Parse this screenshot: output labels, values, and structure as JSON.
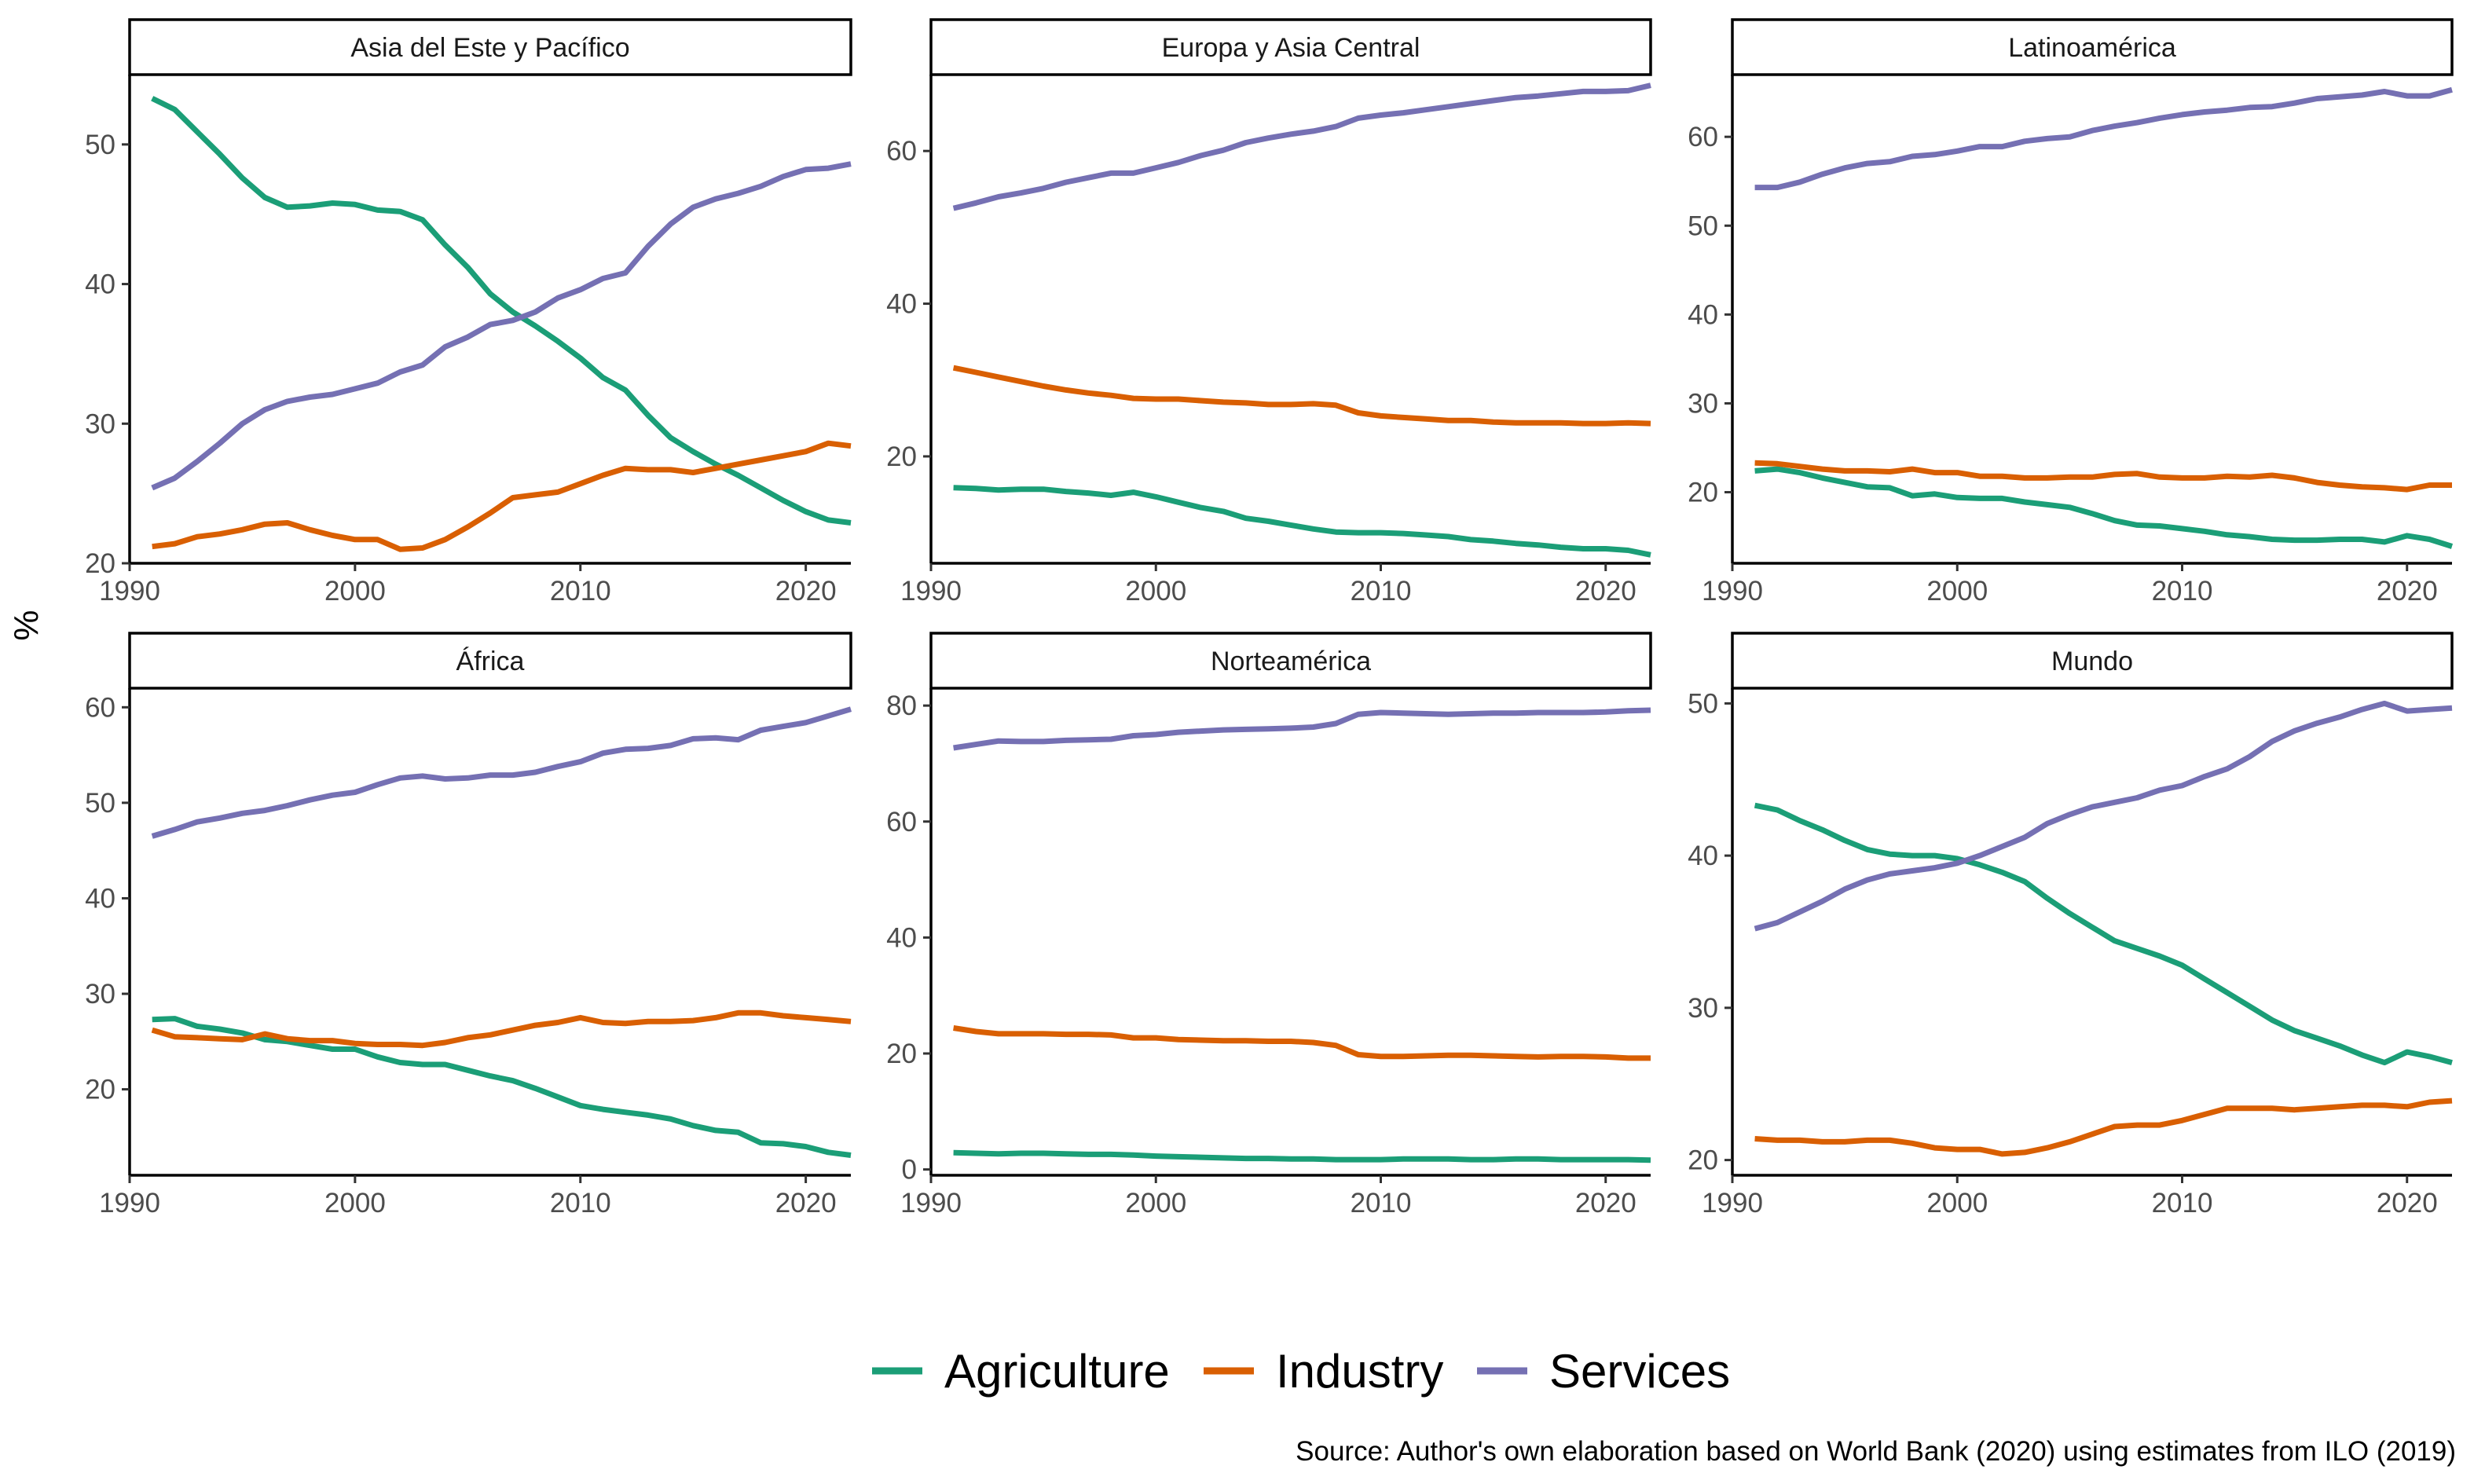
{
  "figure": {
    "ylabel": "%",
    "caption": "Source: Author's own elaboration based on World Bank (2020) using estimates from ILO (2019)"
  },
  "legend": {
    "placement": "bottom",
    "items": [
      {
        "name": "Agriculture",
        "color": "#1B9E77"
      },
      {
        "name": "Industry",
        "color": "#D95F02"
      },
      {
        "name": "Services",
        "color": "#7570B3"
      }
    ]
  },
  "chart_data": [
    {
      "type": "line",
      "title": "Asia del Este y Pacífico",
      "xlim": [
        1990,
        2022
      ],
      "ylim": [
        20,
        55
      ],
      "xticks": [
        1990,
        2000,
        2010,
        2020
      ],
      "yticks": [
        20,
        30,
        40,
        50
      ],
      "x": [
        1991,
        1992,
        1993,
        1994,
        1995,
        1996,
        1997,
        1998,
        1999,
        2000,
        2001,
        2002,
        2003,
        2004,
        2005,
        2006,
        2007,
        2008,
        2009,
        2010,
        2011,
        2012,
        2013,
        2014,
        2015,
        2016,
        2017,
        2018,
        2019,
        2020,
        2021,
        2022
      ],
      "series": [
        {
          "name": "Agriculture",
          "values": [
            53.3,
            52.5,
            50.9,
            49.3,
            47.6,
            46.2,
            45.5,
            45.6,
            45.8,
            45.7,
            45.3,
            45.2,
            44.6,
            42.8,
            41.2,
            39.3,
            38.0,
            37.0,
            35.9,
            34.7,
            33.3,
            32.4,
            30.6,
            29.0,
            28.0,
            27.1,
            26.3,
            25.4,
            24.5,
            23.7,
            23.1,
            22.9
          ]
        },
        {
          "name": "Industry",
          "values": [
            21.2,
            21.4,
            21.9,
            22.1,
            22.4,
            22.8,
            22.9,
            22.4,
            22.0,
            21.7,
            21.7,
            21.0,
            21.1,
            21.7,
            22.6,
            23.6,
            24.7,
            24.9,
            25.1,
            25.7,
            26.3,
            26.8,
            26.7,
            26.7,
            26.5,
            26.8,
            27.1,
            27.4,
            27.7,
            28.0,
            28.6,
            28.4
          ]
        },
        {
          "name": "Services",
          "values": [
            25.4,
            26.1,
            27.3,
            28.6,
            30.0,
            31.0,
            31.6,
            31.9,
            32.1,
            32.5,
            32.9,
            33.7,
            34.2,
            35.5,
            36.2,
            37.1,
            37.4,
            38.0,
            39.0,
            39.6,
            40.4,
            40.8,
            42.7,
            44.3,
            45.5,
            46.1,
            46.5,
            47.0,
            47.7,
            48.2,
            48.3,
            48.6
          ]
        }
      ]
    },
    {
      "type": "line",
      "title": "Europa y Asia Central",
      "xlim": [
        1990,
        2022
      ],
      "ylim": [
        6,
        70
      ],
      "xticks": [
        1990,
        2000,
        2010,
        2020
      ],
      "yticks": [
        20,
        40,
        60
      ],
      "x": [
        1991,
        1992,
        1993,
        1994,
        1995,
        1996,
        1997,
        1998,
        1999,
        2000,
        2001,
        2002,
        2003,
        2004,
        2005,
        2006,
        2007,
        2008,
        2009,
        2010,
        2011,
        2012,
        2013,
        2014,
        2015,
        2016,
        2017,
        2018,
        2019,
        2020,
        2021,
        2022
      ],
      "series": [
        {
          "name": "Agriculture",
          "values": [
            15.9,
            15.8,
            15.6,
            15.7,
            15.7,
            15.4,
            15.2,
            14.9,
            15.3,
            14.7,
            14.0,
            13.3,
            12.8,
            11.9,
            11.5,
            11.0,
            10.5,
            10.1,
            10.0,
            10.0,
            9.9,
            9.7,
            9.5,
            9.1,
            8.9,
            8.6,
            8.4,
            8.1,
            7.9,
            7.9,
            7.7,
            7.1
          ]
        },
        {
          "name": "Industry",
          "values": [
            31.6,
            31.0,
            30.4,
            29.8,
            29.2,
            28.7,
            28.3,
            28.0,
            27.6,
            27.5,
            27.5,
            27.3,
            27.1,
            27.0,
            26.8,
            26.8,
            26.9,
            26.7,
            25.7,
            25.3,
            25.1,
            24.9,
            24.7,
            24.7,
            24.5,
            24.4,
            24.4,
            24.4,
            24.3,
            24.3,
            24.4,
            24.3
          ]
        },
        {
          "name": "Services",
          "values": [
            52.5,
            53.2,
            54.0,
            54.5,
            55.1,
            55.9,
            56.5,
            57.1,
            57.1,
            57.8,
            58.5,
            59.4,
            60.1,
            61.1,
            61.7,
            62.2,
            62.6,
            63.2,
            64.3,
            64.7,
            65.0,
            65.4,
            65.8,
            66.2,
            66.6,
            67.0,
            67.2,
            67.5,
            67.8,
            67.8,
            67.9,
            68.6
          ]
        }
      ]
    },
    {
      "type": "line",
      "title": "Latinoamérica",
      "xlim": [
        1990,
        2022
      ],
      "ylim": [
        12,
        67
      ],
      "xticks": [
        1990,
        2000,
        2010,
        2020
      ],
      "yticks": [
        20,
        30,
        40,
        50,
        60
      ],
      "x": [
        1991,
        1992,
        1993,
        1994,
        1995,
        1996,
        1997,
        1998,
        1999,
        2000,
        2001,
        2002,
        2003,
        2004,
        2005,
        2006,
        2007,
        2008,
        2009,
        2010,
        2011,
        2012,
        2013,
        2014,
        2015,
        2016,
        2017,
        2018,
        2019,
        2020,
        2021,
        2022
      ],
      "series": [
        {
          "name": "Agriculture",
          "values": [
            22.4,
            22.6,
            22.2,
            21.6,
            21.1,
            20.6,
            20.5,
            19.6,
            19.8,
            19.4,
            19.3,
            19.3,
            18.9,
            18.6,
            18.3,
            17.6,
            16.8,
            16.3,
            16.2,
            15.9,
            15.6,
            15.2,
            15.0,
            14.7,
            14.6,
            14.6,
            14.7,
            14.7,
            14.4,
            15.1,
            14.7,
            13.9
          ]
        },
        {
          "name": "Industry",
          "values": [
            23.3,
            23.2,
            22.9,
            22.6,
            22.4,
            22.4,
            22.3,
            22.6,
            22.2,
            22.2,
            21.8,
            21.8,
            21.6,
            21.6,
            21.7,
            21.7,
            22.0,
            22.1,
            21.7,
            21.6,
            21.6,
            21.8,
            21.7,
            21.9,
            21.6,
            21.1,
            20.8,
            20.6,
            20.5,
            20.3,
            20.8,
            20.8
          ]
        },
        {
          "name": "Services",
          "values": [
            54.3,
            54.3,
            54.9,
            55.8,
            56.5,
            57.0,
            57.2,
            57.8,
            58.0,
            58.4,
            58.9,
            58.9,
            59.5,
            59.8,
            60.0,
            60.7,
            61.2,
            61.6,
            62.1,
            62.5,
            62.8,
            63.0,
            63.3,
            63.4,
            63.8,
            64.3,
            64.5,
            64.7,
            65.1,
            64.6,
            64.6,
            65.3
          ]
        }
      ]
    },
    {
      "type": "line",
      "title": "África",
      "xlim": [
        1990,
        2022
      ],
      "ylim": [
        11,
        62
      ],
      "xticks": [
        1990,
        2000,
        2010,
        2020
      ],
      "yticks": [
        20,
        30,
        40,
        50,
        60
      ],
      "x": [
        1991,
        1992,
        1993,
        1994,
        1995,
        1996,
        1997,
        1998,
        1999,
        2000,
        2001,
        2002,
        2003,
        2004,
        2005,
        2006,
        2007,
        2008,
        2009,
        2010,
        2011,
        2012,
        2013,
        2014,
        2015,
        2016,
        2017,
        2018,
        2019,
        2020,
        2021,
        2022
      ],
      "series": [
        {
          "name": "Agriculture",
          "values": [
            27.3,
            27.4,
            26.6,
            26.3,
            25.9,
            25.2,
            25.0,
            24.6,
            24.2,
            24.2,
            23.4,
            22.8,
            22.6,
            22.6,
            22.0,
            21.4,
            20.9,
            20.1,
            19.2,
            18.3,
            17.9,
            17.6,
            17.3,
            16.9,
            16.2,
            15.7,
            15.5,
            14.4,
            14.3,
            14.0,
            13.4,
            13.1
          ]
        },
        {
          "name": "Industry",
          "values": [
            26.2,
            25.5,
            25.4,
            25.3,
            25.2,
            25.8,
            25.3,
            25.1,
            25.1,
            24.8,
            24.7,
            24.7,
            24.6,
            24.9,
            25.4,
            25.7,
            26.2,
            26.7,
            27.0,
            27.5,
            27.0,
            26.9,
            27.1,
            27.1,
            27.2,
            27.5,
            28.0,
            28.0,
            27.7,
            27.5,
            27.3,
            27.1
          ]
        },
        {
          "name": "Services",
          "values": [
            46.5,
            47.2,
            48.0,
            48.4,
            48.9,
            49.2,
            49.7,
            50.3,
            50.8,
            51.1,
            51.9,
            52.6,
            52.8,
            52.5,
            52.6,
            52.9,
            52.9,
            53.2,
            53.8,
            54.3,
            55.2,
            55.6,
            55.7,
            56.0,
            56.7,
            56.8,
            56.6,
            57.6,
            58.0,
            58.4,
            59.1,
            59.8
          ]
        }
      ]
    },
    {
      "type": "line",
      "title": "Norteamérica",
      "xlim": [
        1990,
        2022
      ],
      "ylim": [
        -1,
        83
      ],
      "xticks": [
        1990,
        2000,
        2010,
        2020
      ],
      "yticks": [
        0,
        20,
        40,
        60,
        80
      ],
      "x": [
        1991,
        1992,
        1993,
        1994,
        1995,
        1996,
        1997,
        1998,
        1999,
        2000,
        2001,
        2002,
        2003,
        2004,
        2005,
        2006,
        2007,
        2008,
        2009,
        2010,
        2011,
        2012,
        2013,
        2014,
        2015,
        2016,
        2017,
        2018,
        2019,
        2020,
        2021,
        2022
      ],
      "series": [
        {
          "name": "Agriculture",
          "values": [
            2.9,
            2.8,
            2.7,
            2.8,
            2.8,
            2.7,
            2.6,
            2.6,
            2.5,
            2.3,
            2.2,
            2.1,
            2.0,
            1.9,
            1.9,
            1.8,
            1.8,
            1.7,
            1.7,
            1.7,
            1.8,
            1.8,
            1.8,
            1.7,
            1.7,
            1.8,
            1.8,
            1.7,
            1.7,
            1.7,
            1.7,
            1.6
          ]
        },
        {
          "name": "Industry",
          "values": [
            24.4,
            23.8,
            23.4,
            23.4,
            23.4,
            23.3,
            23.3,
            23.2,
            22.7,
            22.7,
            22.4,
            22.3,
            22.2,
            22.2,
            22.1,
            22.1,
            21.9,
            21.4,
            19.8,
            19.5,
            19.5,
            19.6,
            19.7,
            19.7,
            19.6,
            19.5,
            19.4,
            19.5,
            19.5,
            19.4,
            19.2,
            19.2
          ]
        },
        {
          "name": "Services",
          "values": [
            72.7,
            73.3,
            73.9,
            73.8,
            73.8,
            74.0,
            74.1,
            74.2,
            74.8,
            75.0,
            75.4,
            75.6,
            75.8,
            75.9,
            76.0,
            76.1,
            76.3,
            76.9,
            78.5,
            78.8,
            78.7,
            78.6,
            78.5,
            78.6,
            78.7,
            78.7,
            78.8,
            78.8,
            78.8,
            78.9,
            79.1,
            79.2
          ]
        }
      ]
    },
    {
      "type": "line",
      "title": "Mundo",
      "xlim": [
        1990,
        2022
      ],
      "ylim": [
        19,
        51
      ],
      "xticks": [
        1990,
        2000,
        2010,
        2020
      ],
      "yticks": [
        20,
        30,
        40,
        50
      ],
      "x": [
        1991,
        1992,
        1993,
        1994,
        1995,
        1996,
        1997,
        1998,
        1999,
        2000,
        2001,
        2002,
        2003,
        2004,
        2005,
        2006,
        2007,
        2008,
        2009,
        2010,
        2011,
        2012,
        2013,
        2014,
        2015,
        2016,
        2017,
        2018,
        2019,
        2020,
        2021,
        2022
      ],
      "series": [
        {
          "name": "Agriculture",
          "values": [
            43.3,
            43.0,
            42.3,
            41.7,
            41.0,
            40.4,
            40.1,
            40.0,
            40.0,
            39.8,
            39.4,
            38.9,
            38.3,
            37.2,
            36.2,
            35.3,
            34.4,
            33.9,
            33.4,
            32.8,
            31.9,
            31.0,
            30.1,
            29.2,
            28.5,
            28.0,
            27.5,
            26.9,
            26.4,
            27.1,
            26.8,
            26.4
          ]
        },
        {
          "name": "Industry",
          "values": [
            21.4,
            21.3,
            21.3,
            21.2,
            21.2,
            21.3,
            21.3,
            21.1,
            20.8,
            20.7,
            20.7,
            20.4,
            20.5,
            20.8,
            21.2,
            21.7,
            22.2,
            22.3,
            22.3,
            22.6,
            23.0,
            23.4,
            23.4,
            23.4,
            23.3,
            23.4,
            23.5,
            23.6,
            23.6,
            23.5,
            23.8,
            23.9
          ]
        },
        {
          "name": "Services",
          "values": [
            35.2,
            35.6,
            36.3,
            37.0,
            37.8,
            38.4,
            38.8,
            39.0,
            39.2,
            39.5,
            40.0,
            40.6,
            41.2,
            42.1,
            42.7,
            43.2,
            43.5,
            43.8,
            44.3,
            44.6,
            45.2,
            45.7,
            46.5,
            47.5,
            48.2,
            48.7,
            49.1,
            49.6,
            50.0,
            49.5,
            49.6,
            49.7
          ]
        }
      ]
    }
  ]
}
